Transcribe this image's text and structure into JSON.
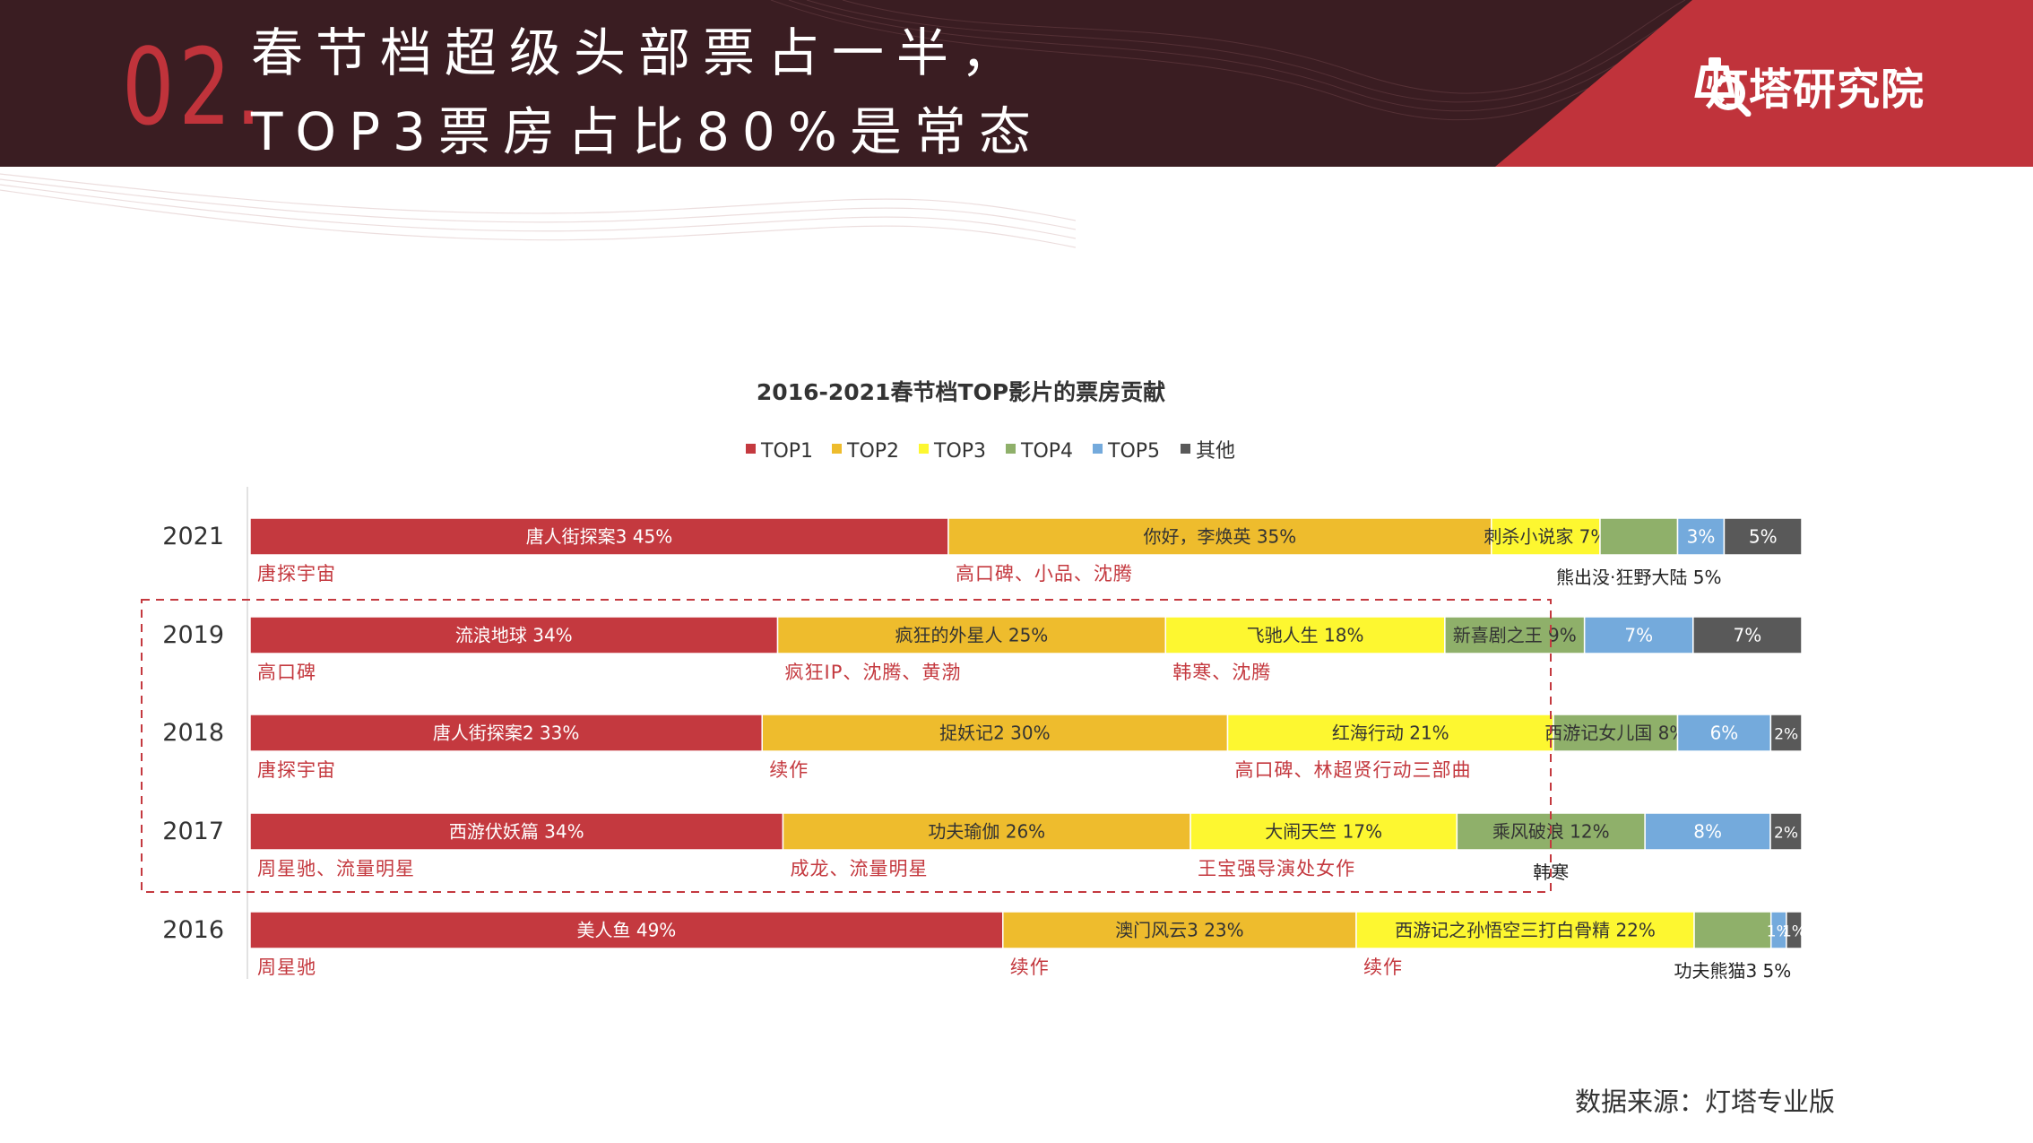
{
  "header": {
    "section_number": "02.",
    "title_line1": "春节档超级头部票占一半，",
    "title_line2": "TOP3票房占比80%是常态",
    "logo_text": "灯塔研究院"
  },
  "source_note": "数据来源：灯塔专业版",
  "colors": {
    "TOP1": "#c4393f",
    "TOP2": "#eebc2d",
    "TOP3": "#fdf730",
    "TOP4": "#8fb06a",
    "TOP5": "#74aadc",
    "其他": "#595959",
    "header_bg": "#3a1d22",
    "accent_red": "#c0333b",
    "annotation_red": "#c4393f"
  },
  "chart_data": {
    "type": "bar",
    "orientation": "horizontal",
    "stacked": "percent",
    "title": "2016-2021春节档TOP影片的票房贡献",
    "legend_position": "top",
    "categories": [
      "2021",
      "2019",
      "2018",
      "2017",
      "2016"
    ],
    "series": [
      {
        "name": "TOP1",
        "values": [
          45,
          34,
          33,
          34,
          49
        ]
      },
      {
        "name": "TOP2",
        "values": [
          35,
          25,
          30,
          26,
          23
        ]
      },
      {
        "name": "TOP3",
        "values": [
          7,
          18,
          21,
          17,
          22
        ]
      },
      {
        "name": "TOP4",
        "values": [
          5,
          9,
          8,
          12,
          5
        ]
      },
      {
        "name": "TOP5",
        "values": [
          3,
          7,
          6,
          8,
          1
        ]
      },
      {
        "name": "其他",
        "values": [
          5,
          7,
          2,
          2,
          1
        ]
      }
    ],
    "bar_labels": [
      [
        "唐人街探案3 45%",
        "你好，李焕英 35%",
        "刺杀小说家 7%",
        "",
        "3%",
        "5%"
      ],
      [
        "流浪地球 34%",
        "疯狂的外星人 25%",
        "飞驰人生 18%",
        "新喜剧之王 9%",
        "7%",
        "7%"
      ],
      [
        "唐人街探案2 33%",
        "捉妖记2 30%",
        "红海行动 21%",
        "西游记女儿国 8%",
        "6%",
        "2%"
      ],
      [
        "西游伏妖篇 34%",
        "功夫瑜伽 26%",
        "大闹天竺 17%",
        "乘风破浪 12%",
        "8%",
        "2%"
      ],
      [
        "美人鱼 49%",
        "澳门风云3 23%",
        "西游记之孙悟空三打白骨精 22%",
        "",
        "1%",
        "1%"
      ]
    ],
    "annotations": [
      [
        "唐探宇宙",
        "高口碑、小品、沈腾",
        "",
        "熊出没·狂野大陆 5%",
        "",
        ""
      ],
      [
        "高口碑",
        "疯狂IP、沈腾、黄渤",
        "韩寒、沈腾",
        "",
        "",
        ""
      ],
      [
        "唐探宇宙",
        "续作",
        "高口碑、林超贤行动三部曲",
        "",
        "",
        ""
      ],
      [
        "周星驰、流量明星",
        "成龙、流量明星",
        "王宝强导演处女作",
        "韩寒",
        "",
        ""
      ],
      [
        "周星驰",
        "续作",
        "续作",
        "功夫熊猫3 5%",
        "",
        ""
      ]
    ],
    "highlighted_categories": [
      "2019",
      "2018",
      "2017"
    ],
    "xlim": [
      0,
      100
    ]
  }
}
